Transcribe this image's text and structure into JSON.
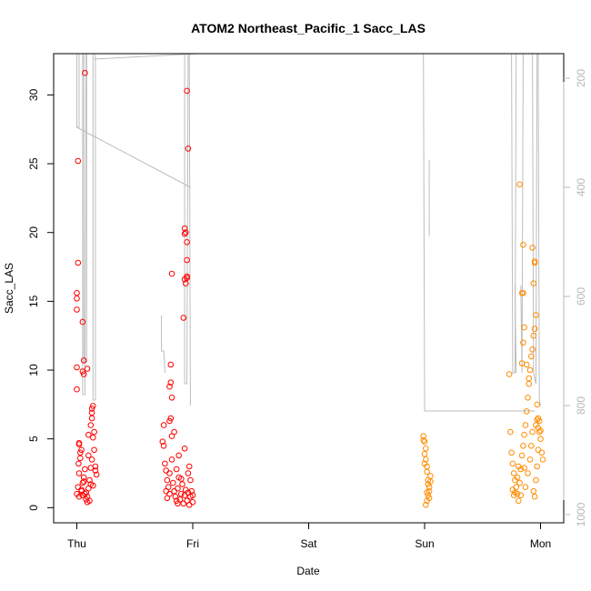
{
  "chart_data": {
    "type": "scatter",
    "title": "ATOM2 Northeast_Pacific_1 Sacc_LAS",
    "xlabel": "Date",
    "ylabel": "Sacc_LAS",
    "x_ticks": [
      "Thu",
      "Fri",
      "Sat",
      "Sun",
      "Mon"
    ],
    "y_ticks": [
      "0",
      "5",
      "10",
      "15",
      "20",
      "25",
      "30"
    ],
    "y2_ticks": [
      "200",
      "400",
      "600",
      "800",
      "1000"
    ],
    "xlim": [
      -0.2,
      4.2
    ],
    "ylim": [
      -1.1,
      33.0
    ],
    "y2lim": [
      1015,
      155
    ],
    "grid": false,
    "colors": {
      "series_red": "#ff0000",
      "series_orange": "#ff8c00",
      "depth_line": "#bdbdbd",
      "right_axis": "#b8b8b8"
    },
    "series": [
      {
        "values": [
          [
            0.0,
            1.0
          ],
          [
            0.01,
            1.5
          ],
          [
            0.02,
            2.5
          ],
          [
            0.015,
            3.2
          ],
          [
            0.03,
            4.0
          ],
          [
            0.02,
            4.6
          ],
          [
            0.04,
            1.2
          ],
          [
            0.05,
            1.8
          ],
          [
            0.06,
            2.2
          ],
          [
            0.03,
            3.6
          ],
          [
            0.07,
            1.0
          ],
          [
            0.08,
            0.6
          ],
          [
            0.09,
            0.8
          ],
          [
            0.1,
            1.4
          ],
          [
            0.11,
            2.0
          ],
          [
            0.12,
            2.9
          ],
          [
            0.13,
            3.5
          ],
          [
            0.14,
            1.6
          ],
          [
            0.1,
            5.3
          ],
          [
            0.12,
            6.0
          ],
          [
            0.13,
            6.5
          ],
          [
            0.15,
            4.2
          ],
          [
            0.16,
            3.0
          ],
          [
            0.17,
            2.4
          ],
          [
            0.14,
            5.1
          ],
          [
            0.09,
            0.4
          ],
          [
            0.11,
            0.5
          ],
          [
            0.08,
            1.1
          ],
          [
            0.05,
            0.9
          ],
          [
            0.06,
            1.9
          ],
          [
            0.0,
            8.6
          ],
          [
            0.0,
            10.2
          ],
          [
            0.0,
            14.4
          ],
          [
            0.0,
            15.2
          ],
          [
            0.0,
            15.6
          ],
          [
            0.01,
            17.8
          ],
          [
            0.01,
            25.2
          ],
          [
            0.06,
            9.7
          ],
          [
            0.05,
            9.9
          ],
          [
            0.06,
            10.7
          ],
          [
            0.05,
            13.5
          ],
          [
            0.07,
            31.6
          ],
          [
            0.09,
            10.1
          ],
          [
            0.13,
            7.2
          ],
          [
            0.14,
            7.4
          ],
          [
            0.13,
            6.9
          ],
          [
            0.02,
            4.7
          ],
          [
            0.04,
            4.2
          ],
          [
            0.1,
            3.8
          ],
          [
            0.12,
            1.7
          ],
          [
            0.02,
            0.8
          ],
          [
            0.04,
            1.3
          ],
          [
            0.07,
            2.8
          ],
          [
            0.15,
            5.5
          ],
          [
            0.16,
            2.7
          ],
          [
            0.75,
            6.0
          ],
          [
            0.74,
            4.8
          ],
          [
            0.75,
            4.5
          ],
          [
            0.76,
            3.2
          ],
          [
            0.77,
            2.7
          ],
          [
            0.78,
            2.0
          ],
          [
            0.79,
            1.5
          ],
          [
            0.8,
            1.0
          ],
          [
            0.78,
            0.7
          ],
          [
            0.8,
            2.5
          ],
          [
            0.82,
            3.5
          ],
          [
            0.83,
            1.8
          ],
          [
            0.84,
            1.2
          ],
          [
            0.85,
            0.8
          ],
          [
            0.86,
            0.5
          ],
          [
            0.87,
            1.4
          ],
          [
            0.88,
            2.2
          ],
          [
            0.89,
            0.6
          ],
          [
            0.9,
            1.0
          ],
          [
            0.91,
            1.7
          ],
          [
            0.92,
            0.3
          ],
          [
            0.93,
            0.9
          ],
          [
            0.94,
            1.3
          ],
          [
            0.95,
            0.5
          ],
          [
            0.96,
            1.1
          ],
          [
            0.97,
            0.2
          ],
          [
            0.98,
            0.8
          ],
          [
            0.99,
            1.2
          ],
          [
            1.0,
            0.4
          ],
          [
            1.0,
            0.9
          ],
          [
            0.96,
            2.5
          ],
          [
            0.97,
            3.0
          ],
          [
            0.98,
            2.0
          ],
          [
            0.93,
            4.3
          ],
          [
            0.86,
            2.8
          ],
          [
            0.88,
            3.8
          ],
          [
            0.82,
            5.2
          ],
          [
            0.8,
            6.3
          ],
          [
            0.81,
            6.5
          ],
          [
            0.84,
            5.5
          ],
          [
            0.8,
            8.8
          ],
          [
            0.81,
            9.1
          ],
          [
            0.82,
            8.0
          ],
          [
            0.81,
            10.4
          ],
          [
            0.82,
            17.0
          ],
          [
            0.92,
            13.8
          ],
          [
            0.93,
            16.6
          ],
          [
            0.94,
            16.3
          ],
          [
            0.95,
            16.8
          ],
          [
            0.95,
            16.7
          ],
          [
            0.93,
            19.9
          ],
          [
            0.93,
            20.3
          ],
          [
            0.94,
            20.0
          ],
          [
            0.95,
            18.0
          ],
          [
            0.95,
            19.3
          ],
          [
            0.96,
            26.1
          ],
          [
            0.95,
            30.3
          ],
          [
            0.87,
            0.3
          ],
          [
            0.9,
            2.1
          ],
          [
            0.77,
            1.2
          ]
        ]
      },
      {
        "values": [
          [
            2.99,
            5.2
          ],
          [
            3.0,
            4.8
          ],
          [
            3.01,
            4.3
          ],
          [
            3.0,
            3.9
          ],
          [
            3.01,
            3.5
          ],
          [
            3.02,
            3.0
          ],
          [
            3.02,
            2.6
          ],
          [
            3.03,
            2.0
          ],
          [
            3.03,
            1.7
          ],
          [
            3.04,
            1.5
          ],
          [
            3.04,
            1.2
          ],
          [
            3.03,
            0.9
          ],
          [
            3.02,
            0.5
          ],
          [
            3.01,
            0.2
          ],
          [
            3.05,
            1.9
          ],
          [
            3.05,
            2.3
          ],
          [
            2.99,
            4.9
          ],
          [
            3.0,
            3.2
          ],
          [
            3.02,
            1.1
          ],
          [
            3.04,
            0.7
          ],
          [
            3.73,
            9.7
          ],
          [
            3.74,
            5.5
          ],
          [
            3.75,
            4.0
          ],
          [
            3.76,
            3.2
          ],
          [
            3.77,
            2.5
          ],
          [
            3.78,
            2.0
          ],
          [
            3.79,
            1.5
          ],
          [
            3.8,
            1.0
          ],
          [
            3.81,
            0.5
          ],
          [
            3.82,
            1.8
          ],
          [
            3.83,
            2.8
          ],
          [
            3.84,
            3.8
          ],
          [
            3.85,
            4.5
          ],
          [
            3.86,
            5.3
          ],
          [
            3.87,
            6.0
          ],
          [
            3.88,
            7.0
          ],
          [
            3.89,
            8.0
          ],
          [
            3.9,
            9.0
          ],
          [
            3.91,
            10.0
          ],
          [
            3.92,
            11.0
          ],
          [
            3.93,
            11.5
          ],
          [
            3.94,
            12.5
          ],
          [
            3.95,
            13.0
          ],
          [
            3.96,
            14.0
          ],
          [
            3.97,
            7.5
          ],
          [
            3.98,
            6.5
          ],
          [
            3.99,
            5.5
          ],
          [
            4.0,
            5.0
          ],
          [
            4.01,
            4.0
          ],
          [
            4.02,
            3.5
          ],
          [
            3.84,
            10.5
          ],
          [
            3.85,
            12.0
          ],
          [
            3.86,
            13.1
          ],
          [
            3.84,
            15.6
          ],
          [
            3.85,
            15.6
          ],
          [
            3.85,
            19.1
          ],
          [
            3.82,
            23.5
          ],
          [
            3.94,
            16.3
          ],
          [
            3.95,
            17.8
          ],
          [
            3.95,
            17.9
          ],
          [
            3.93,
            18.9
          ],
          [
            3.9,
            9.4
          ],
          [
            3.88,
            10.4
          ],
          [
            3.81,
            3.0
          ],
          [
            3.83,
            0.9
          ],
          [
            3.87,
            1.5
          ],
          [
            3.89,
            2.5
          ],
          [
            3.91,
            3.5
          ],
          [
            3.92,
            4.5
          ],
          [
            3.93,
            5.5
          ],
          [
            3.96,
            6.0
          ],
          [
            3.97,
            6.4
          ],
          [
            3.98,
            5.8
          ],
          [
            3.99,
            6.3
          ],
          [
            4.0,
            5.6
          ],
          [
            3.94,
            1.2
          ],
          [
            3.95,
            0.8
          ],
          [
            3.96,
            2.0
          ],
          [
            3.97,
            3.0
          ],
          [
            3.98,
            4.2
          ],
          [
            3.76,
            1.3
          ],
          [
            3.77,
            0.9
          ],
          [
            3.78,
            1.1
          ],
          [
            3.8,
            2.2
          ],
          [
            3.86,
            2.9
          ]
        ]
      }
    ]
  }
}
